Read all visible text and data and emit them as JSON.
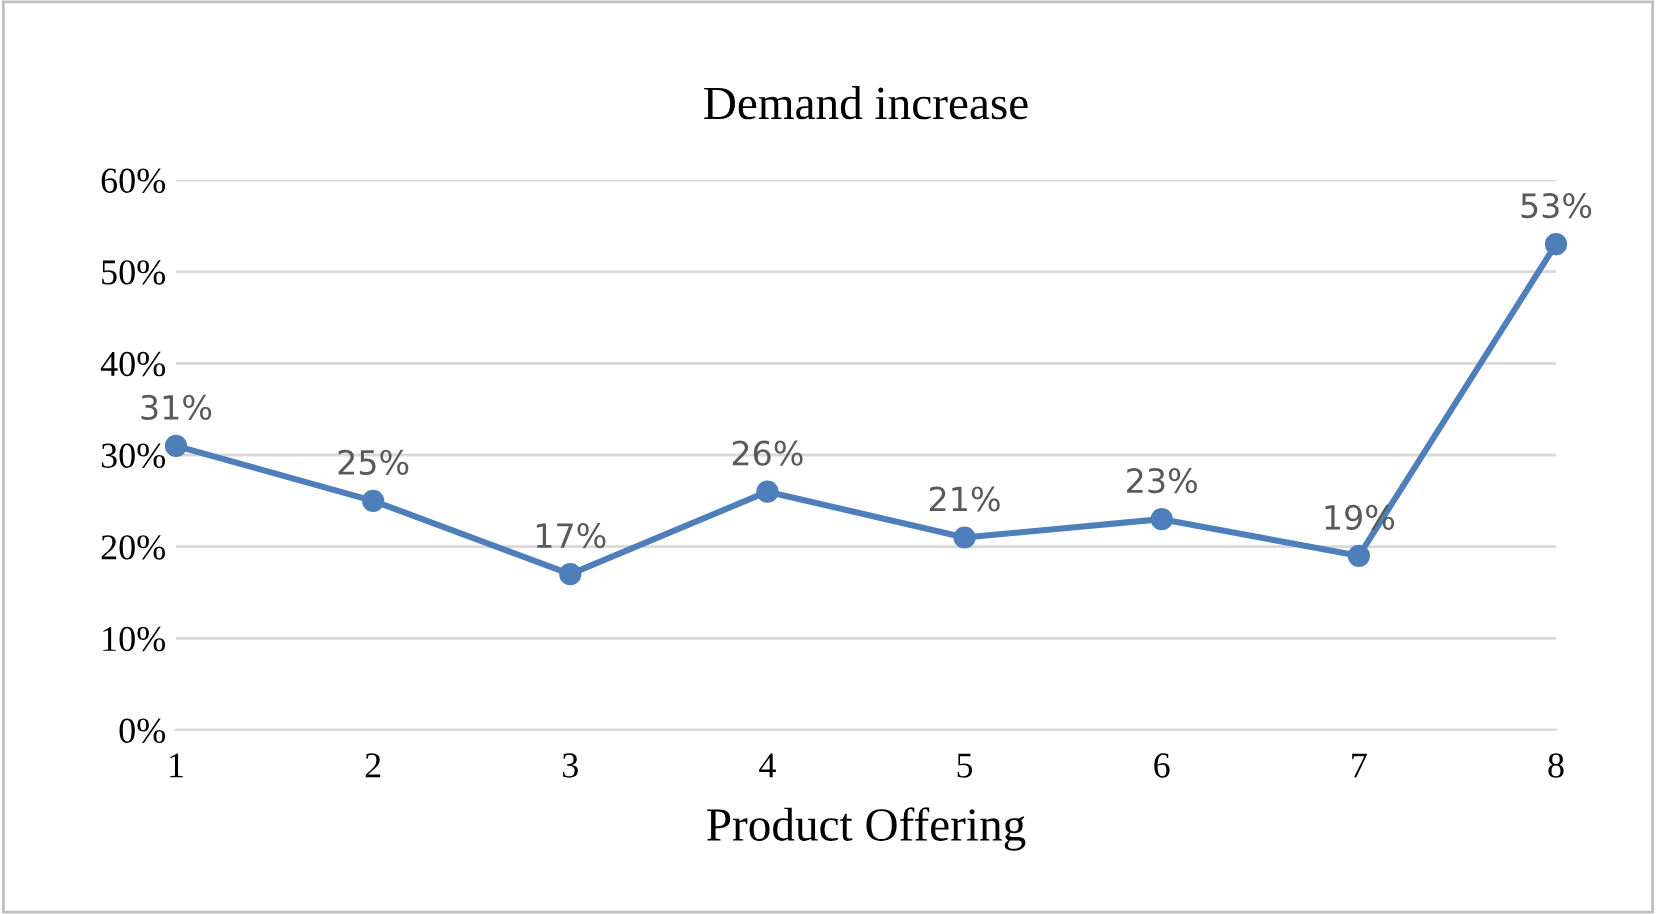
{
  "chart_data": {
    "type": "line",
    "title": "Demand increase",
    "xlabel": "Product Offering",
    "x": [
      1,
      2,
      3,
      4,
      5,
      6,
      7,
      8
    ],
    "series": [
      {
        "color": "#4f7fba",
        "values": [
          31,
          25,
          17,
          26,
          21,
          23,
          19,
          53
        ],
        "value_labels": [
          "31%",
          "25%",
          "17%",
          "26%",
          "21%",
          "23%",
          "19%",
          "53%"
        ]
      }
    ],
    "xlim": [
      1,
      8
    ],
    "xticks": [
      1,
      2,
      3,
      4,
      5,
      6,
      7,
      8
    ],
    "ylim": [
      0,
      60
    ],
    "yticks": [
      {
        "value": 0,
        "label": "0%"
      },
      {
        "value": 10,
        "label": "10%"
      },
      {
        "value": 20,
        "label": "20%"
      },
      {
        "value": 30,
        "label": "30%"
      },
      {
        "value": 40,
        "label": "40%"
      },
      {
        "value": 50,
        "label": "50%"
      },
      {
        "value": 60,
        "label": "60%"
      }
    ],
    "grid": "y",
    "marker": "circle",
    "line_style": "solid"
  }
}
